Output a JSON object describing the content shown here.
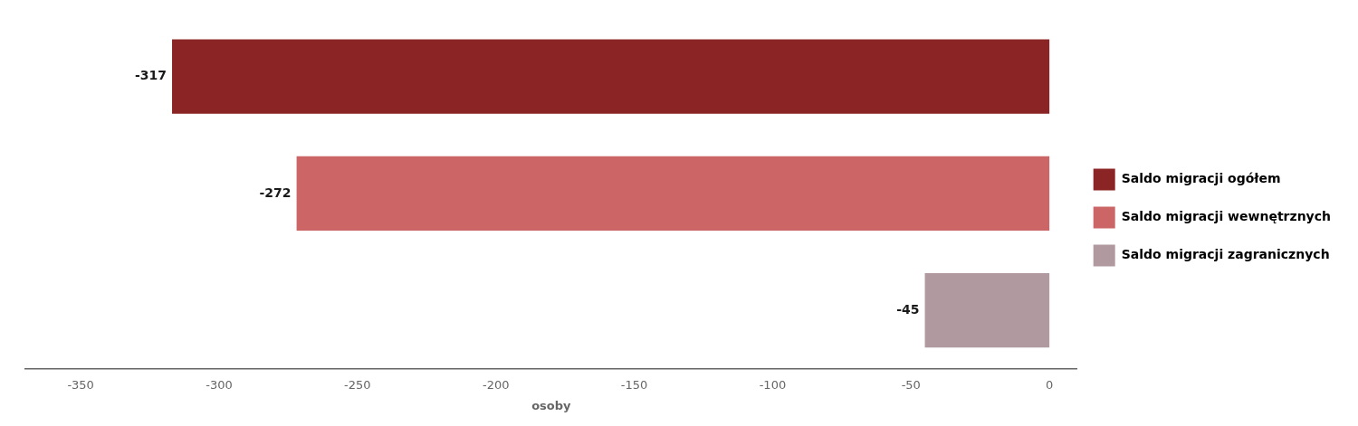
{
  "chart_data": {
    "type": "bar",
    "orientation": "horizontal",
    "categories": [
      "Saldo migracji ogółem",
      "Saldo migracji wewnętrznych",
      "Saldo migracji zagranicznych"
    ],
    "values": [
      -317,
      -272,
      -45
    ],
    "colors": [
      "#8B2525",
      "#CC6666",
      "#B09AA0"
    ],
    "xlabel": "osoby",
    "xlim": [
      -370,
      10
    ],
    "xticks": [
      -350,
      -300,
      -250,
      -200,
      -150,
      -100,
      -50,
      0
    ],
    "grid": false,
    "legend": "right",
    "data_labels": true,
    "tick_labels": "x"
  }
}
